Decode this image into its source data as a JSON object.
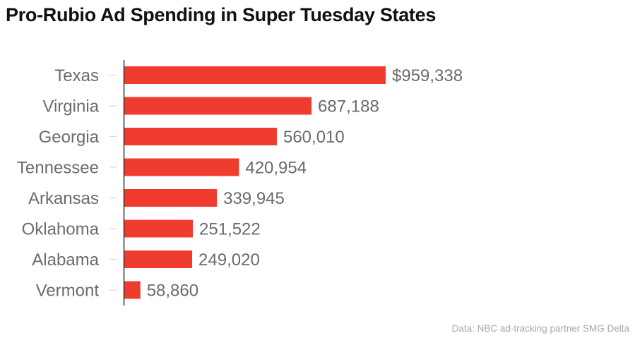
{
  "chart_data": {
    "type": "bar",
    "orientation": "horizontal",
    "title": "Pro-Rubio Ad Spending in Super Tuesday States",
    "categories": [
      "Texas",
      "Virginia",
      "Georgia",
      "Tennessee",
      "Arkansas",
      "Oklahoma",
      "Alabama",
      "Vermont"
    ],
    "values": [
      959338,
      687188,
      560010,
      420954,
      339945,
      251522,
      249020,
      58860
    ],
    "value_labels": [
      "$959,338",
      "687,188",
      "560,010",
      "420,954",
      "339,945",
      "251,522",
      "249,020",
      "58,860"
    ],
    "xlabel": "",
    "ylabel": "",
    "xlim": [
      0,
      959338
    ],
    "grid": false,
    "legend": "none",
    "bar_color": "#f03c2e",
    "source": "Data: NBC ad-tracking partner SMG Delta"
  }
}
